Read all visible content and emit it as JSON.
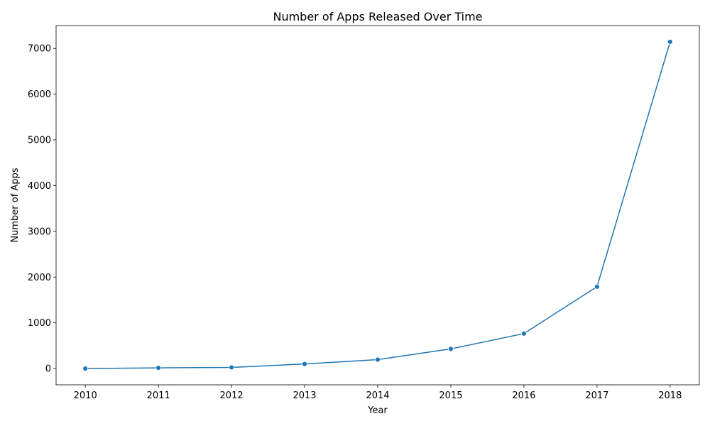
{
  "chart_data": {
    "type": "line",
    "title": "Number of Apps Released Over Time",
    "xlabel": "Year",
    "ylabel": "Number of Apps",
    "x": [
      2010,
      2011,
      2012,
      2013,
      2014,
      2015,
      2016,
      2017,
      2018
    ],
    "series": [
      {
        "values": [
          1,
          15,
          25,
          100,
          195,
          430,
          765,
          1790,
          7145
        ]
      }
    ],
    "xticks": [
      "2010",
      "2011",
      "2012",
      "2013",
      "2014",
      "2015",
      "2016",
      "2017",
      "2018"
    ],
    "yticks": [
      "0",
      "1000",
      "2000",
      "3000",
      "4000",
      "5000",
      "6000",
      "7000"
    ],
    "xlim": [
      2009.6,
      2018.4
    ],
    "ylim": [
      -356,
      7500
    ],
    "grid": false,
    "line_color": "#1f77b4"
  }
}
